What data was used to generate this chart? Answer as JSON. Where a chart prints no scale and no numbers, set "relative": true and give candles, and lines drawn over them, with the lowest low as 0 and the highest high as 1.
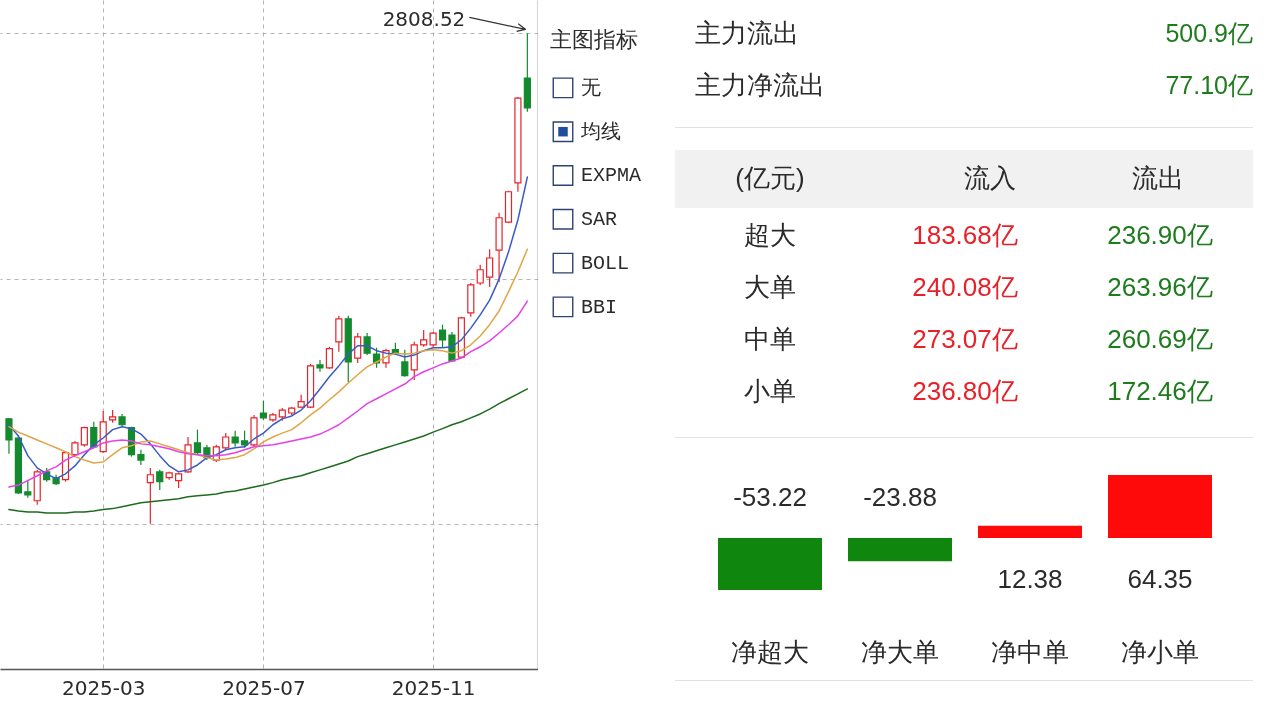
{
  "chart_data": [
    {
      "type": "candlestick",
      "relative": true,
      "grid": true,
      "annotations": [
        "2808.52"
      ],
      "categories": [
        null,
        null,
        null,
        null,
        null,
        null,
        null,
        null,
        null,
        null,
        "2025-03",
        null,
        null,
        null,
        null,
        null,
        null,
        null,
        null,
        null,
        null,
        null,
        null,
        null,
        null,
        null,
        null,
        "2025-07",
        null,
        null,
        null,
        null,
        null,
        null,
        null,
        null,
        null,
        null,
        null,
        null,
        null,
        null,
        null,
        null,
        null,
        "2025-11",
        null,
        null,
        null,
        null,
        null,
        null,
        null,
        null,
        null,
        null
      ],
      "ohlc": [
        [
          0.214,
          0.216,
          0.143,
          0.171
        ],
        [
          0.175,
          0.181,
          0.061,
          0.063
        ],
        [
          0.065,
          0.09,
          0.053,
          0.059
        ],
        [
          0.047,
          0.11,
          0.039,
          0.106
        ],
        [
          0.106,
          0.114,
          0.086,
          0.09
        ],
        [
          0.094,
          0.1,
          0.079,
          0.082
        ],
        [
          0.09,
          0.147,
          0.086,
          0.145
        ],
        [
          0.141,
          0.169,
          0.137,
          0.165
        ],
        [
          0.161,
          0.198,
          0.157,
          0.196
        ],
        [
          0.196,
          0.208,
          0.155,
          0.157
        ],
        [
          0.147,
          0.23,
          0.145,
          0.208
        ],
        [
          0.212,
          0.232,
          0.206,
          0.218
        ],
        [
          0.218,
          0.224,
          0.198,
          0.202
        ],
        [
          0.196,
          0.198,
          0.137,
          0.141
        ],
        [
          0.141,
          0.151,
          0.12,
          0.13
        ],
        [
          0.084,
          0.114,
          0,
          0.1
        ],
        [
          0.106,
          0.11,
          0.069,
          0.086
        ],
        [
          0.094,
          0.106,
          0.09,
          0.104
        ],
        [
          0.088,
          0.104,
          0.073,
          0.102
        ],
        [
          0.106,
          0.177,
          0.104,
          0.161
        ],
        [
          0.165,
          0.192,
          0.141,
          0.145
        ],
        [
          0.155,
          0.161,
          0.13,
          0.135
        ],
        [
          0.13,
          0.161,
          0.126,
          0.157
        ],
        [
          0.155,
          0.185,
          0.151,
          0.177
        ],
        [
          0.177,
          0.19,
          0.157,
          0.165
        ],
        [
          0.169,
          0.19,
          0.155,
          0.161
        ],
        [
          0.161,
          0.222,
          0.157,
          0.216
        ],
        [
          0.226,
          0.251,
          0.212,
          0.216
        ],
        [
          0.212,
          0.226,
          0.208,
          0.222
        ],
        [
          0.218,
          0.236,
          0.21,
          0.232
        ],
        [
          0.226,
          0.238,
          0.222,
          0.236
        ],
        [
          0.238,
          0.263,
          0.236,
          0.249
        ],
        [
          0.238,
          0.326,
          0.236,
          0.322
        ],
        [
          0.324,
          0.334,
          0.31,
          0.318
        ],
        [
          0.318,
          0.361,
          0.316,
          0.357
        ],
        [
          0.371,
          0.424,
          0.351,
          0.418
        ],
        [
          0.418,
          0.424,
          0.289,
          0.33
        ],
        [
          0.338,
          0.389,
          0.328,
          0.381
        ],
        [
          0.381,
          0.389,
          0.344,
          0.348
        ],
        [
          0.346,
          0.359,
          0.318,
          0.328
        ],
        [
          0.328,
          0.357,
          0.318,
          0.353
        ],
        [
          0.355,
          0.369,
          0.344,
          0.348
        ],
        [
          0.33,
          0.355,
          0.3,
          0.302
        ],
        [
          0.314,
          0.371,
          0.293,
          0.365
        ],
        [
          0.365,
          0.395,
          0.361,
          0.375
        ],
        [
          0.365,
          0.391,
          0.361,
          0.389
        ],
        [
          0.395,
          0.406,
          0.359,
          0.375
        ],
        [
          0.385,
          0.391,
          0.33,
          0.332
        ],
        [
          0.34,
          0.422,
          0.338,
          0.42
        ],
        [
          0.43,
          0.491,
          0.422,
          0.487
        ],
        [
          0.491,
          0.528,
          0.487,
          0.518
        ],
        [
          0.503,
          0.56,
          0.483,
          0.542
        ],
        [
          0.558,
          0.634,
          0.493,
          0.624
        ],
        [
          0.615,
          0.679,
          0.613,
          0.677
        ],
        [
          0.695,
          0.87,
          0.677,
          0.868
        ],
        [
          0.909,
          1,
          0.84,
          0.848
        ]
      ],
      "colors": [
        "#138a2e",
        "#138a2e",
        "#138a2e",
        "#e5242b",
        "#138a2e",
        "#138a2e",
        "#e5242b",
        "#e5242b",
        "#e5242b",
        "#138a2e",
        "#e5242b",
        "#e5242b",
        "#138a2e",
        "#138a2e",
        "#138a2e",
        "#e5242b",
        "#138a2e",
        "#e5242b",
        "#e5242b",
        "#e5242b",
        "#138a2e",
        "#138a2e",
        "#e5242b",
        "#e5242b",
        "#138a2e",
        "#138a2e",
        "#e5242b",
        "#138a2e",
        "#e5242b",
        "#e5242b",
        "#e5242b",
        "#e5242b",
        "#e5242b",
        "#138a2e",
        "#e5242b",
        "#e5242b",
        "#138a2e",
        "#e5242b",
        "#138a2e",
        "#138a2e",
        "#e5242b",
        "#138a2e",
        "#138a2e",
        "#e5242b",
        "#e5242b",
        "#e5242b",
        "#138a2e",
        "#138a2e",
        "#e5242b",
        "#e5242b",
        "#e5242b",
        "#e5242b",
        "#e5242b",
        "#e5242b",
        "#e5242b",
        "#138a2e"
      ],
      "series": [
        {
          "type": "line",
          "color": "#3a5bc7",
          "values": [
            0.202,
            0.179,
            0.139,
            0.114,
            0.102,
            0.092,
            0.102,
            0.118,
            0.141,
            0.161,
            0.175,
            0.192,
            0.198,
            0.194,
            0.183,
            0.163,
            0.139,
            0.118,
            0.106,
            0.11,
            0.12,
            0.135,
            0.141,
            0.151,
            0.155,
            0.157,
            0.173,
            0.185,
            0.202,
            0.214,
            0.22,
            0.232,
            0.251,
            0.275,
            0.3,
            0.322,
            0.346,
            0.363,
            0.363,
            0.353,
            0.348,
            0.346,
            0.34,
            0.344,
            0.353,
            0.359,
            0.359,
            0.361,
            0.375,
            0.399,
            0.426,
            0.456,
            0.499,
            0.554,
            0.62,
            0.707
          ]
        },
        {
          "type": "line",
          "color": "#e0a548",
          "values": [
            0.198,
            0.187,
            0.179,
            0.171,
            0.163,
            0.155,
            0.147,
            0.137,
            0.13,
            0.124,
            0.126,
            0.141,
            0.155,
            0.159,
            0.167,
            0.169,
            0.163,
            0.157,
            0.151,
            0.145,
            0.141,
            0.135,
            0.13,
            0.132,
            0.135,
            0.141,
            0.153,
            0.167,
            0.177,
            0.185,
            0.192,
            0.206,
            0.222,
            0.236,
            0.253,
            0.269,
            0.287,
            0.304,
            0.32,
            0.33,
            0.34,
            0.348,
            0.346,
            0.348,
            0.353,
            0.355,
            0.353,
            0.348,
            0.353,
            0.365,
            0.383,
            0.406,
            0.434,
            0.473,
            0.514,
            0.56
          ]
        },
        {
          "type": "line",
          "color": "#e641e6",
          "values": [
            0.075,
            0.079,
            0.088,
            0.098,
            0.108,
            0.116,
            0.13,
            0.139,
            0.147,
            0.155,
            0.165,
            0.169,
            0.171,
            0.169,
            0.163,
            0.161,
            0.157,
            0.153,
            0.147,
            0.143,
            0.141,
            0.139,
            0.139,
            0.141,
            0.145,
            0.151,
            0.157,
            0.159,
            0.161,
            0.165,
            0.169,
            0.173,
            0.177,
            0.183,
            0.192,
            0.202,
            0.216,
            0.23,
            0.245,
            0.255,
            0.265,
            0.275,
            0.285,
            0.3,
            0.31,
            0.318,
            0.326,
            0.332,
            0.338,
            0.351,
            0.361,
            0.373,
            0.389,
            0.406,
            0.424,
            0.454
          ]
        },
        {
          "type": "line",
          "color": "#1d6b1d",
          "values": [
            0.029,
            0.026,
            0.024,
            0.024,
            0.022,
            0.022,
            0.022,
            0.024,
            0.024,
            0.026,
            0.029,
            0.031,
            0.035,
            0.039,
            0.043,
            0.045,
            0.047,
            0.049,
            0.051,
            0.055,
            0.057,
            0.059,
            0.061,
            0.065,
            0.067,
            0.071,
            0.075,
            0.079,
            0.084,
            0.09,
            0.094,
            0.098,
            0.104,
            0.11,
            0.116,
            0.122,
            0.128,
            0.137,
            0.143,
            0.149,
            0.155,
            0.161,
            0.167,
            0.173,
            0.179,
            0.187,
            0.194,
            0.202,
            0.208,
            0.216,
            0.224,
            0.234,
            0.245,
            0.255,
            0.265,
            0.275
          ]
        }
      ]
    },
    {
      "type": "other",
      "title": "主图指标",
      "categories": [
        "无",
        "均线",
        "EXPMA",
        "SAR",
        "BOLL",
        "BBI"
      ],
      "colors": [
        "#ffffff",
        "#1f4e9c",
        "#ffffff",
        "#ffffff",
        "#ffffff",
        "#ffffff"
      ]
    },
    {
      "type": "other",
      "categories": [
        "主力流出",
        "主力净流出"
      ],
      "values": [
        500.9,
        77.1
      ],
      "value_labels": [
        "500.9亿",
        "77.10亿"
      ],
      "color": "#1e7b1e"
    },
    {
      "type": "other",
      "ylabel": "(亿元)",
      "categories": [
        "超大",
        "大单",
        "中单",
        "小单"
      ],
      "series": [
        {
          "name": "流入",
          "colors": [
            "#e8202a",
            "#e8202a",
            "#e8202a",
            "#e8202a"
          ],
          "values": [
            183.68,
            240.08,
            273.07,
            236.8
          ],
          "value_labels": [
            "183.68亿",
            "240.08亿",
            "273.07亿",
            "236.80亿"
          ]
        },
        {
          "name": "流出",
          "colors": [
            "#1e7b1e",
            "#1e7b1e",
            "#1e7b1e",
            "#1e7b1e"
          ],
          "values": [
            236.9,
            263.96,
            260.69,
            172.46
          ],
          "value_labels": [
            "236.90亿",
            "263.96亿",
            "260.69亿",
            "172.46亿"
          ]
        }
      ]
    },
    {
      "type": "bar",
      "categories": [
        "净超大",
        "净大单",
        "净中单",
        "净小单"
      ],
      "values": [
        -53.22,
        -23.88,
        12.38,
        64.35
      ],
      "colors": [
        "#0f870f",
        "#0f870f",
        "#ff0a0a",
        "#ff0a0a"
      ],
      "data_labels": true,
      "tick_labels": "x"
    }
  ]
}
